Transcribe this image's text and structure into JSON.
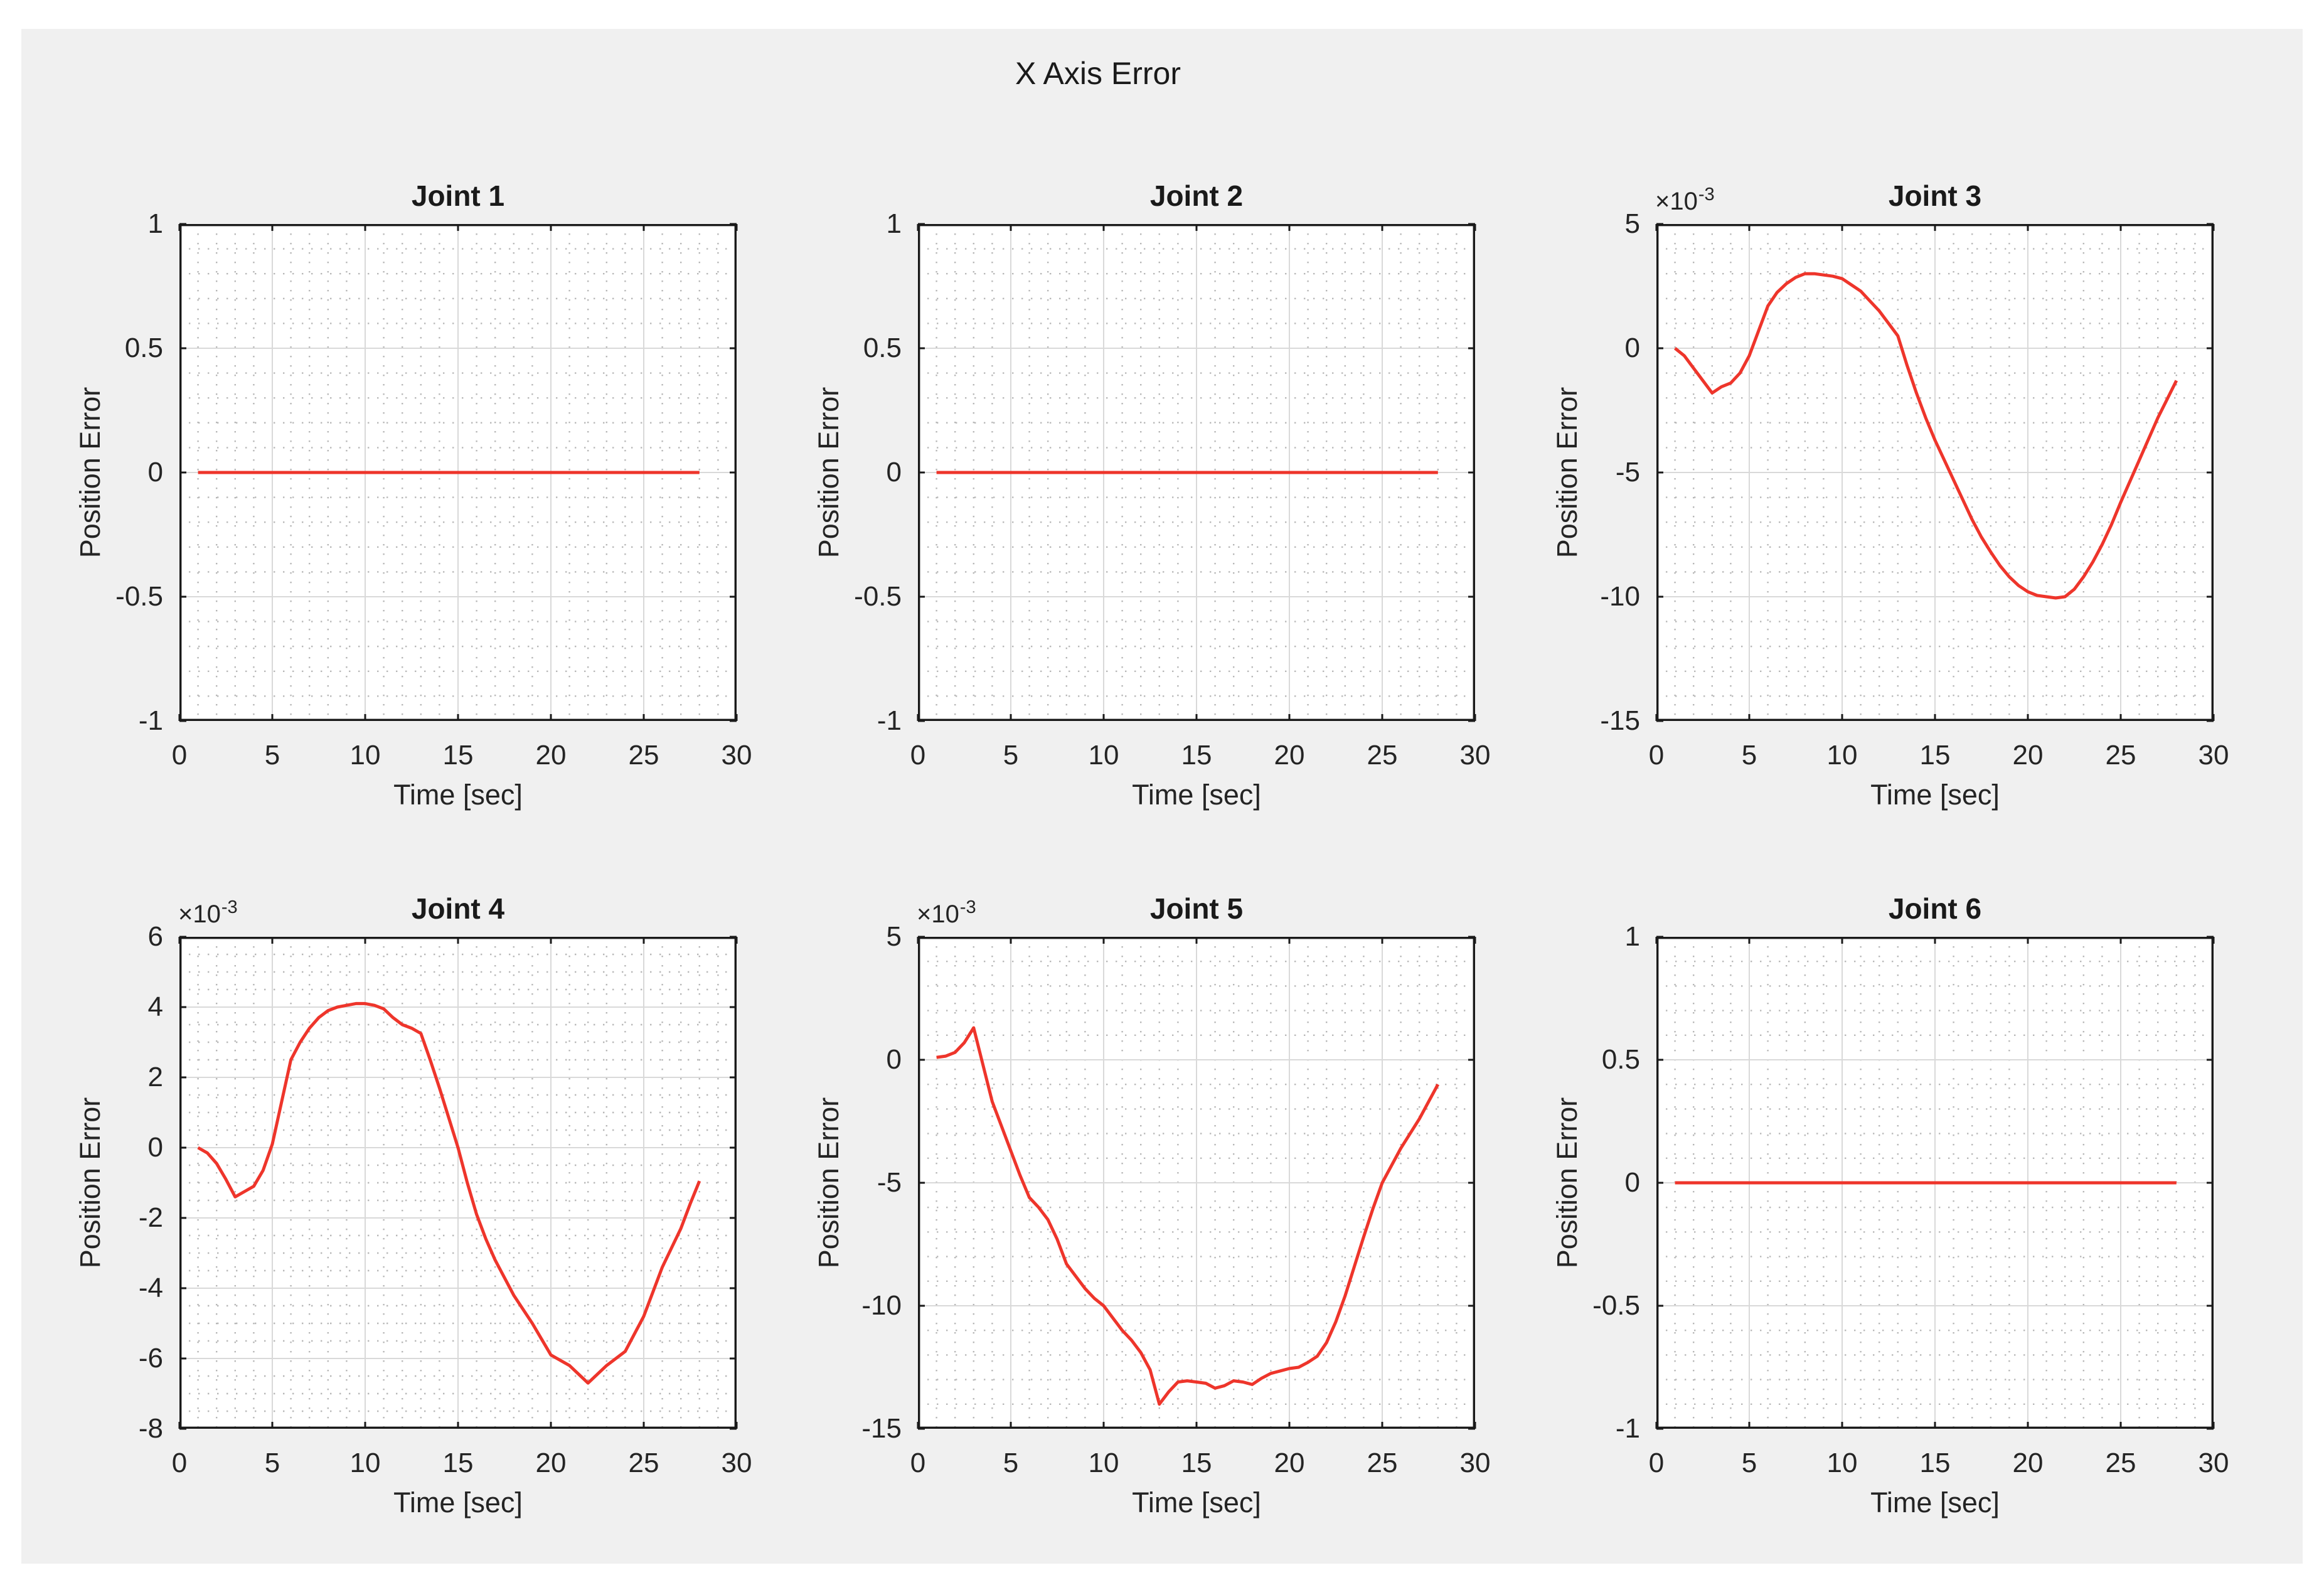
{
  "figure": {
    "suptitle": "X Axis Error",
    "background_color": "#f0f0f0",
    "plot_background_color": "#ffffff",
    "line_color": "#ee352b",
    "major_grid_color": "#d9d9d9",
    "minor_grid_color": "#b8b8b8",
    "axes_border_color": "#1a1a1a"
  },
  "chart_data": [
    {
      "type": "line",
      "title": "Joint 1",
      "xlabel": "Time [sec]",
      "ylabel": "Position Error",
      "xlim": [
        0,
        30
      ],
      "ylim": [
        -1,
        1
      ],
      "xticks": [
        0,
        5,
        10,
        15,
        20,
        25,
        30
      ],
      "yticks": [
        -1,
        -0.5,
        0,
        0.5,
        1
      ],
      "minor_grid": {
        "x_step": 1,
        "y_step": 0.1
      },
      "offset_label": null,
      "grid": "on",
      "series": [
        {
          "name": "position_error",
          "color": "#ee352b",
          "points": [
            [
              1,
              0
            ],
            [
              28,
              0
            ]
          ]
        }
      ]
    },
    {
      "type": "line",
      "title": "Joint 2",
      "xlabel": "Time [sec]",
      "ylabel": "Position Error",
      "xlim": [
        0,
        30
      ],
      "ylim": [
        -1,
        1
      ],
      "xticks": [
        0,
        5,
        10,
        15,
        20,
        25,
        30
      ],
      "yticks": [
        -1,
        -0.5,
        0,
        0.5,
        1
      ],
      "minor_grid": {
        "x_step": 1,
        "y_step": 0.1
      },
      "offset_label": null,
      "grid": "on",
      "series": [
        {
          "name": "position_error",
          "color": "#ee352b",
          "points": [
            [
              1,
              0
            ],
            [
              28,
              0
            ]
          ]
        }
      ]
    },
    {
      "type": "line",
      "title": "Joint 3",
      "xlabel": "Time [sec]",
      "ylabel": "Position Error",
      "xlim": [
        0,
        30
      ],
      "ylim": [
        -15,
        5
      ],
      "xticks": [
        0,
        5,
        10,
        15,
        20,
        25,
        30
      ],
      "yticks": [
        -15,
        -10,
        -5,
        0,
        5
      ],
      "minor_grid": {
        "x_step": 1,
        "y_step": 1
      },
      "offset_label": {
        "base": "×10",
        "exponent": "-3"
      },
      "grid": "on",
      "series": [
        {
          "name": "position_error",
          "color": "#ee352b",
          "points": [
            [
              1,
              0
            ],
            [
              1.5,
              -0.3
            ],
            [
              2,
              -0.8
            ],
            [
              2.5,
              -1.3
            ],
            [
              3,
              -1.8
            ],
            [
              3.5,
              -1.55
            ],
            [
              4,
              -1.4
            ],
            [
              4.5,
              -1.0
            ],
            [
              5,
              -0.3
            ],
            [
              5.5,
              0.7
            ],
            [
              6,
              1.7
            ],
            [
              6.5,
              2.25
            ],
            [
              7,
              2.6
            ],
            [
              7.5,
              2.85
            ],
            [
              8,
              3.0
            ],
            [
              8.5,
              3.0
            ],
            [
              9,
              2.95
            ],
            [
              9.5,
              2.9
            ],
            [
              10,
              2.8
            ],
            [
              10.5,
              2.55
            ],
            [
              11,
              2.3
            ],
            [
              11.5,
              1.9
            ],
            [
              12,
              1.5
            ],
            [
              12.5,
              1.0
            ],
            [
              13,
              0.5
            ],
            [
              13.5,
              -0.7
            ],
            [
              14,
              -1.8
            ],
            [
              14.5,
              -2.8
            ],
            [
              15,
              -3.7
            ],
            [
              15.5,
              -4.5
            ],
            [
              16,
              -5.3
            ],
            [
              16.5,
              -6.1
            ],
            [
              17,
              -6.9
            ],
            [
              17.5,
              -7.6
            ],
            [
              18,
              -8.2
            ],
            [
              18.5,
              -8.75
            ],
            [
              19,
              -9.2
            ],
            [
              19.5,
              -9.55
            ],
            [
              20,
              -9.8
            ],
            [
              20.5,
              -9.95
            ],
            [
              21,
              -10.0
            ],
            [
              21.5,
              -10.05
            ],
            [
              22,
              -10.0
            ],
            [
              22.5,
              -9.7
            ],
            [
              23,
              -9.2
            ],
            [
              23.5,
              -8.6
            ],
            [
              24,
              -7.9
            ],
            [
              24.5,
              -7.1
            ],
            [
              25,
              -6.2
            ],
            [
              25.5,
              -5.35
            ],
            [
              26,
              -4.5
            ],
            [
              26.5,
              -3.65
            ],
            [
              27,
              -2.8
            ],
            [
              27.5,
              -2.05
            ],
            [
              28,
              -1.3
            ]
          ]
        }
      ]
    },
    {
      "type": "line",
      "title": "Joint 4",
      "xlabel": "Time [sec]",
      "ylabel": "Position Error",
      "xlim": [
        0,
        30
      ],
      "ylim": [
        -8,
        6
      ],
      "xticks": [
        0,
        5,
        10,
        15,
        20,
        25,
        30
      ],
      "yticks": [
        -8,
        -6,
        -4,
        -2,
        0,
        2,
        4,
        6
      ],
      "minor_grid": {
        "x_step": 1,
        "y_step": 0.5
      },
      "offset_label": {
        "base": "×10",
        "exponent": "-3"
      },
      "grid": "on",
      "series": [
        {
          "name": "position_error",
          "color": "#ee352b",
          "points": [
            [
              1,
              0
            ],
            [
              1.5,
              -0.15
            ],
            [
              2,
              -0.45
            ],
            [
              2.5,
              -0.9
            ],
            [
              3,
              -1.4
            ],
            [
              3.5,
              -1.25
            ],
            [
              4,
              -1.1
            ],
            [
              4.5,
              -0.65
            ],
            [
              5,
              0.1
            ],
            [
              5.5,
              1.3
            ],
            [
              6,
              2.5
            ],
            [
              6.5,
              3.0
            ],
            [
              7,
              3.4
            ],
            [
              7.5,
              3.7
            ],
            [
              8,
              3.9
            ],
            [
              8.5,
              4.0
            ],
            [
              9,
              4.05
            ],
            [
              9.5,
              4.1
            ],
            [
              10,
              4.1
            ],
            [
              10.5,
              4.05
            ],
            [
              11,
              3.95
            ],
            [
              11.5,
              3.7
            ],
            [
              12,
              3.5
            ],
            [
              12.5,
              3.4
            ],
            [
              13,
              3.25
            ],
            [
              13.5,
              2.5
            ],
            [
              14,
              1.7
            ],
            [
              14.5,
              0.85
            ],
            [
              15,
              0.0
            ],
            [
              15.5,
              -1.0
            ],
            [
              16,
              -1.9
            ],
            [
              16.5,
              -2.6
            ],
            [
              17,
              -3.2
            ],
            [
              17.5,
              -3.7
            ],
            [
              18,
              -4.2
            ],
            [
              18.5,
              -4.6
            ],
            [
              19,
              -5.0
            ],
            [
              19.5,
              -5.45
            ],
            [
              20,
              -5.9
            ],
            [
              20.5,
              -6.05
            ],
            [
              21,
              -6.2
            ],
            [
              21.5,
              -6.45
            ],
            [
              22,
              -6.7
            ],
            [
              22.5,
              -6.45
            ],
            [
              23,
              -6.2
            ],
            [
              23.5,
              -6.0
            ],
            [
              24,
              -5.8
            ],
            [
              24.5,
              -5.3
            ],
            [
              25,
              -4.8
            ],
            [
              25.5,
              -4.1
            ],
            [
              26,
              -3.4
            ],
            [
              26.5,
              -2.85
            ],
            [
              27,
              -2.3
            ],
            [
              27.5,
              -1.6
            ],
            [
              28,
              -0.95
            ]
          ]
        }
      ]
    },
    {
      "type": "line",
      "title": "Joint 5",
      "xlabel": "Time [sec]",
      "ylabel": "Position Error",
      "xlim": [
        0,
        30
      ],
      "ylim": [
        -15,
        5
      ],
      "xticks": [
        0,
        5,
        10,
        15,
        20,
        25,
        30
      ],
      "yticks": [
        -15,
        -10,
        -5,
        0,
        5
      ],
      "minor_grid": {
        "x_step": 1,
        "y_step": 1
      },
      "offset_label": {
        "base": "×10",
        "exponent": "-3"
      },
      "grid": "on",
      "series": [
        {
          "name": "position_error",
          "color": "#ee352b",
          "points": [
            [
              1,
              0.1
            ],
            [
              1.5,
              0.15
            ],
            [
              2,
              0.3
            ],
            [
              2.5,
              0.7
            ],
            [
              3,
              1.3
            ],
            [
              3.5,
              -0.2
            ],
            [
              4,
              -1.7
            ],
            [
              4.5,
              -2.7
            ],
            [
              5,
              -3.7
            ],
            [
              5.5,
              -4.7
            ],
            [
              6,
              -5.6
            ],
            [
              6.5,
              -6.0
            ],
            [
              7,
              -6.5
            ],
            [
              7.5,
              -7.3
            ],
            [
              8,
              -8.3
            ],
            [
              8.5,
              -8.8
            ],
            [
              9,
              -9.3
            ],
            [
              9.5,
              -9.7
            ],
            [
              10,
              -10.0
            ],
            [
              10.5,
              -10.5
            ],
            [
              11,
              -11.0
            ],
            [
              11.5,
              -11.4
            ],
            [
              12,
              -11.9
            ],
            [
              12.5,
              -12.6
            ],
            [
              13,
              -14.0
            ],
            [
              13.5,
              -13.5
            ],
            [
              14,
              -13.1
            ],
            [
              14.5,
              -13.05
            ],
            [
              15,
              -13.1
            ],
            [
              15.5,
              -13.15
            ],
            [
              16,
              -13.35
            ],
            [
              16.5,
              -13.25
            ],
            [
              17,
              -13.05
            ],
            [
              17.5,
              -13.1
            ],
            [
              18,
              -13.2
            ],
            [
              18.5,
              -12.95
            ],
            [
              19,
              -12.75
            ],
            [
              19.5,
              -12.65
            ],
            [
              20,
              -12.55
            ],
            [
              20.5,
              -12.5
            ],
            [
              21,
              -12.3
            ],
            [
              21.5,
              -12.05
            ],
            [
              22,
              -11.5
            ],
            [
              22.5,
              -10.65
            ],
            [
              23,
              -9.6
            ],
            [
              23.5,
              -8.4
            ],
            [
              24,
              -7.2
            ],
            [
              24.5,
              -6.05
            ],
            [
              25,
              -5.0
            ],
            [
              25.5,
              -4.3
            ],
            [
              26,
              -3.6
            ],
            [
              26.5,
              -3.0
            ],
            [
              27,
              -2.4
            ],
            [
              27.5,
              -1.7
            ],
            [
              28,
              -1.0
            ]
          ]
        }
      ]
    },
    {
      "type": "line",
      "title": "Joint 6",
      "xlabel": "Time [sec]",
      "ylabel": "Position Error",
      "xlim": [
        0,
        30
      ],
      "ylim": [
        -1,
        1
      ],
      "xticks": [
        0,
        5,
        10,
        15,
        20,
        25,
        30
      ],
      "yticks": [
        -1,
        -0.5,
        0,
        0.5,
        1
      ],
      "minor_grid": {
        "x_step": 1,
        "y_step": 0.1
      },
      "offset_label": null,
      "grid": "on",
      "series": [
        {
          "name": "position_error",
          "color": "#ee352b",
          "points": [
            [
              1,
              0
            ],
            [
              28,
              0
            ]
          ]
        }
      ]
    }
  ]
}
